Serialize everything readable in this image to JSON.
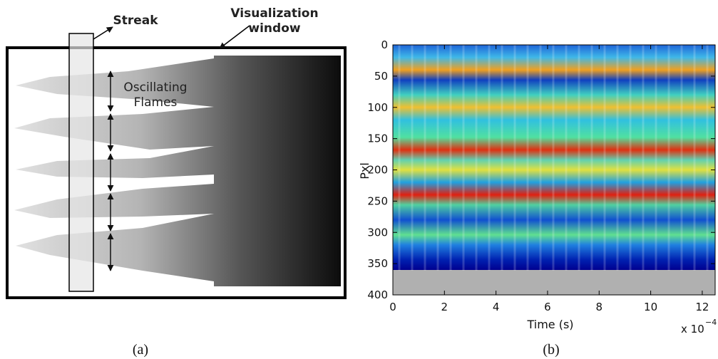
{
  "panel_a": {
    "streak_label": "Streak",
    "window_label_line1": "Visualization",
    "window_label_line2": "window",
    "flames_label_line1": "Oscillating",
    "flames_label_line2": "Flames",
    "caption": "(a)"
  },
  "chart_data": {
    "type": "heatmap",
    "x_label": "Time (s)",
    "y_label": "Pxl",
    "x_multiplier": {
      "base": "x 10",
      "exponent": "−4"
    },
    "xlim": [
      0,
      12.5
    ],
    "xticks": [
      0,
      2,
      4,
      6,
      8,
      10,
      12
    ],
    "ylim": [
      0,
      400
    ],
    "yticks": [
      0,
      50,
      100,
      150,
      200,
      250,
      300,
      350,
      400
    ],
    "y_inverted": true,
    "caption": "(b)"
  }
}
